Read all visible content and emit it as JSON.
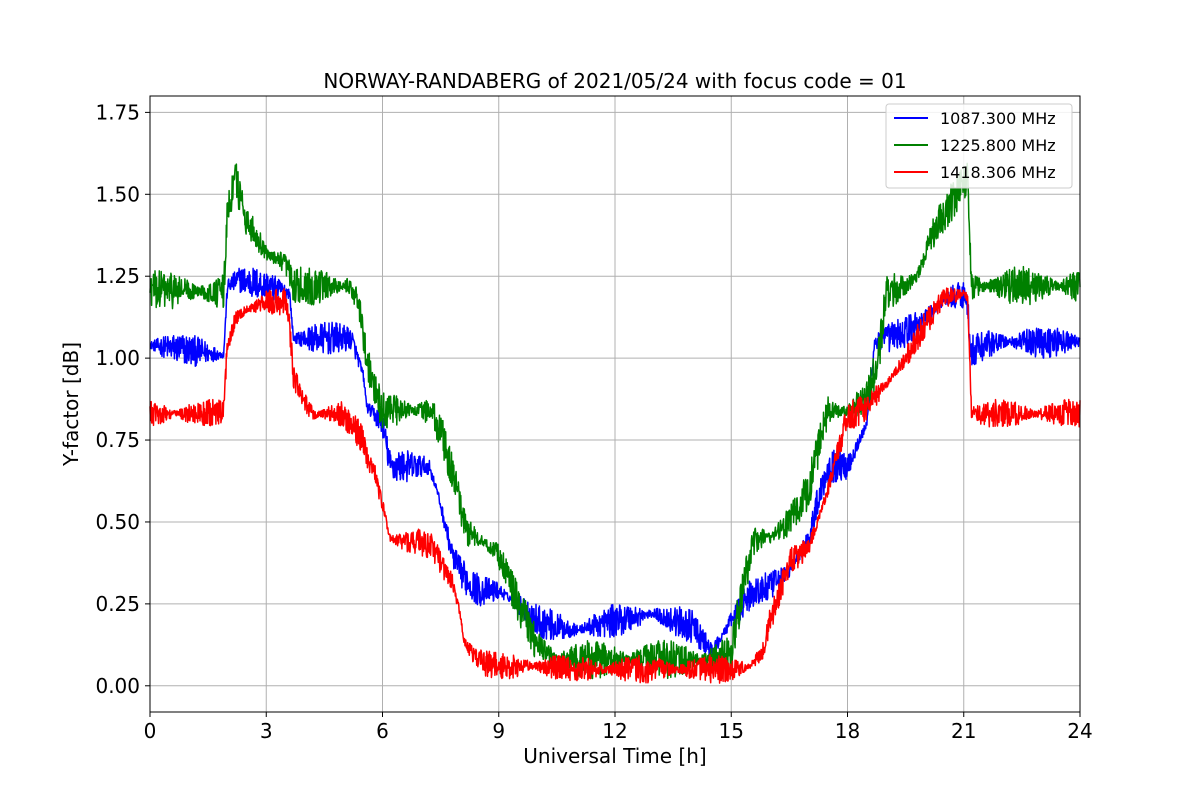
{
  "chart_data": {
    "type": "line",
    "title": "NORWAY-RANDABERG of 2021/05/24 with focus code = 01",
    "xlabel": "Universal Time [h]",
    "ylabel": "Y-factor [dB]",
    "xlim": [
      0,
      24
    ],
    "ylim": [
      -0.08,
      1.8
    ],
    "xticks": [
      0,
      3,
      6,
      9,
      12,
      15,
      18,
      21,
      24
    ],
    "yticks": [
      0.0,
      0.25,
      0.5,
      0.75,
      1.0,
      1.25,
      1.5,
      1.75
    ],
    "xtick_labels": [
      "0",
      "3",
      "6",
      "9",
      "12",
      "15",
      "18",
      "21",
      "24"
    ],
    "ytick_labels": [
      "0.00",
      "0.25",
      "0.50",
      "0.75",
      "1.00",
      "1.25",
      "1.50",
      "1.75"
    ],
    "grid": true,
    "legend": "top-right",
    "series": [
      {
        "name": "1087.300 MHz",
        "color": "#0000ff",
        "noise": 0.025,
        "x": [
          0,
          1.9,
          2.0,
          2.3,
          3.0,
          3.6,
          3.7,
          4.5,
          5.2,
          5.5,
          5.6,
          6.0,
          6.2,
          7.2,
          7.4,
          7.6,
          7.8,
          8.0,
          8.2,
          8.5,
          9.0,
          9.5,
          10.0,
          10.5,
          11.0,
          12.0,
          13.0,
          14.0,
          14.5,
          15.0,
          15.3,
          15.6,
          16.0,
          16.5,
          17.0,
          17.2,
          17.5,
          18.0,
          18.5,
          18.7,
          19.0,
          19.5,
          20.0,
          20.5,
          21.0,
          21.1,
          21.2,
          21.5,
          22.0,
          23.0,
          24.0
        ],
        "y": [
          1.04,
          1.01,
          1.22,
          1.24,
          1.22,
          1.2,
          1.06,
          1.06,
          1.06,
          0.95,
          0.85,
          0.8,
          0.67,
          0.67,
          0.6,
          0.5,
          0.4,
          0.35,
          0.32,
          0.29,
          0.29,
          0.25,
          0.2,
          0.18,
          0.17,
          0.2,
          0.22,
          0.18,
          0.1,
          0.2,
          0.25,
          0.29,
          0.3,
          0.35,
          0.45,
          0.55,
          0.67,
          0.67,
          0.8,
          1.05,
          1.06,
          1.08,
          1.12,
          1.18,
          1.2,
          1.15,
          1.02,
          1.04,
          1.05,
          1.05,
          1.05
        ]
      },
      {
        "name": "1225.800 MHz",
        "color": "#008000",
        "noise": 0.03,
        "x": [
          0,
          1.9,
          2.0,
          2.2,
          2.5,
          3.0,
          3.5,
          3.7,
          4.5,
          5.2,
          5.4,
          5.6,
          5.8,
          6.0,
          6.2,
          6.5,
          7.2,
          7.5,
          7.8,
          8.0,
          8.2,
          8.5,
          9.0,
          9.5,
          10.0,
          10.5,
          11.0,
          12.0,
          13.0,
          14.0,
          14.5,
          15.0,
          15.3,
          15.6,
          16.0,
          16.5,
          17.0,
          17.3,
          17.5,
          18.0,
          18.5,
          18.8,
          19.0,
          19.5,
          19.8,
          20.2,
          20.8,
          21.1,
          21.2,
          21.5,
          22.0,
          24.0
        ],
        "y": [
          1.21,
          1.2,
          1.45,
          1.55,
          1.42,
          1.32,
          1.28,
          1.22,
          1.22,
          1.22,
          1.15,
          1.0,
          0.9,
          0.84,
          0.84,
          0.84,
          0.84,
          0.78,
          0.65,
          0.55,
          0.47,
          0.45,
          0.4,
          0.25,
          0.12,
          0.08,
          0.08,
          0.08,
          0.08,
          0.08,
          0.08,
          0.1,
          0.3,
          0.45,
          0.45,
          0.5,
          0.6,
          0.75,
          0.84,
          0.84,
          0.88,
          1.0,
          1.2,
          1.22,
          1.25,
          1.38,
          1.5,
          1.55,
          1.22,
          1.22,
          1.22,
          1.22
        ]
      },
      {
        "name": "1418.306 MHz",
        "color": "#ff0000",
        "noise": 0.022,
        "x": [
          0,
          1.9,
          2.0,
          2.2,
          2.5,
          3.0,
          3.5,
          3.6,
          3.7,
          3.9,
          4.2,
          5.0,
          5.5,
          5.6,
          5.8,
          6.0,
          6.1,
          6.2,
          6.5,
          7.0,
          7.3,
          7.6,
          7.8,
          8.0,
          8.1,
          8.3,
          8.6,
          9.0,
          10.0,
          11.0,
          12.0,
          13.0,
          14.0,
          15.0,
          15.5,
          15.8,
          16.0,
          16.3,
          16.5,
          17.0,
          17.5,
          18.0,
          18.5,
          19.0,
          19.5,
          20.0,
          20.5,
          21.0,
          21.1,
          21.2,
          21.5,
          22.0,
          24.0
        ],
        "y": [
          0.83,
          0.83,
          1.05,
          1.12,
          1.15,
          1.17,
          1.17,
          1.1,
          0.95,
          0.88,
          0.83,
          0.83,
          0.75,
          0.7,
          0.65,
          0.55,
          0.5,
          0.45,
          0.44,
          0.44,
          0.42,
          0.35,
          0.32,
          0.22,
          0.14,
          0.1,
          0.07,
          0.06,
          0.06,
          0.05,
          0.05,
          0.05,
          0.05,
          0.05,
          0.06,
          0.1,
          0.2,
          0.3,
          0.38,
          0.42,
          0.6,
          0.82,
          0.85,
          0.92,
          1.0,
          1.1,
          1.18,
          1.2,
          1.18,
          0.83,
          0.83,
          0.83,
          0.83
        ]
      }
    ]
  }
}
